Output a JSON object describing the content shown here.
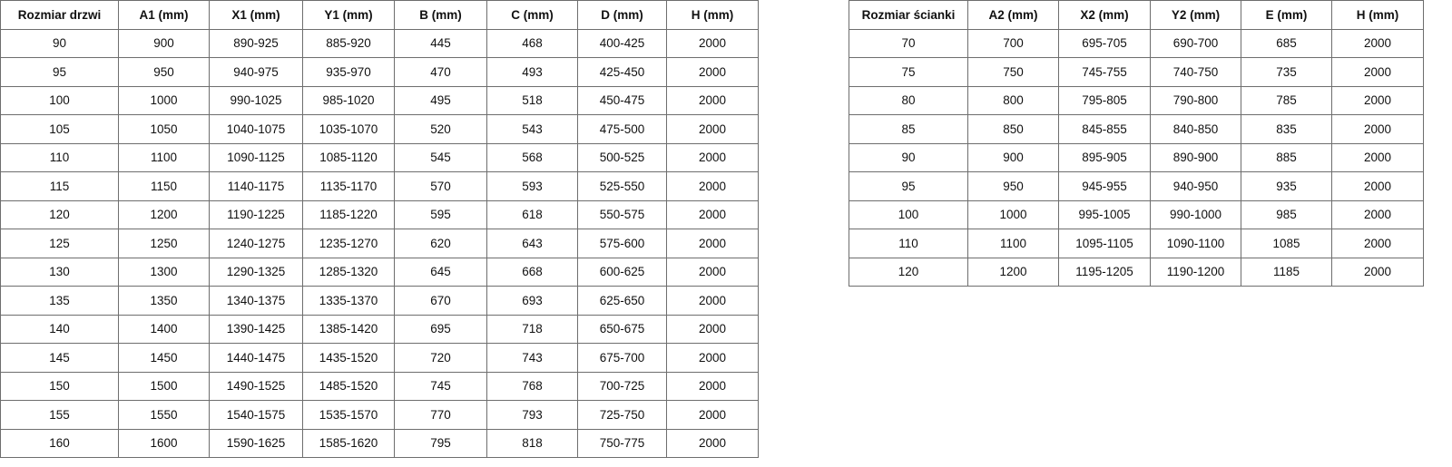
{
  "doors_table": {
    "headers": [
      "Rozmiar drzwi",
      "A1 (mm)",
      "X1 (mm)",
      "Y1 (mm)",
      "B (mm)",
      "C (mm)",
      "D (mm)",
      "H (mm)"
    ],
    "rows": [
      [
        "90",
        "900",
        "890-925",
        "885-920",
        "445",
        "468",
        "400-425",
        "2000"
      ],
      [
        "95",
        "950",
        "940-975",
        "935-970",
        "470",
        "493",
        "425-450",
        "2000"
      ],
      [
        "100",
        "1000",
        "990-1025",
        "985-1020",
        "495",
        "518",
        "450-475",
        "2000"
      ],
      [
        "105",
        "1050",
        "1040-1075",
        "1035-1070",
        "520",
        "543",
        "475-500",
        "2000"
      ],
      [
        "110",
        "1100",
        "1090-1125",
        "1085-1120",
        "545",
        "568",
        "500-525",
        "2000"
      ],
      [
        "115",
        "1150",
        "1140-1175",
        "1135-1170",
        "570",
        "593",
        "525-550",
        "2000"
      ],
      [
        "120",
        "1200",
        "1190-1225",
        "1185-1220",
        "595",
        "618",
        "550-575",
        "2000"
      ],
      [
        "125",
        "1250",
        "1240-1275",
        "1235-1270",
        "620",
        "643",
        "575-600",
        "2000"
      ],
      [
        "130",
        "1300",
        "1290-1325",
        "1285-1320",
        "645",
        "668",
        "600-625",
        "2000"
      ],
      [
        "135",
        "1350",
        "1340-1375",
        "1335-1370",
        "670",
        "693",
        "625-650",
        "2000"
      ],
      [
        "140",
        "1400",
        "1390-1425",
        "1385-1420",
        "695",
        "718",
        "650-675",
        "2000"
      ],
      [
        "145",
        "1450",
        "1440-1475",
        "1435-1520",
        "720",
        "743",
        "675-700",
        "2000"
      ],
      [
        "150",
        "1500",
        "1490-1525",
        "1485-1520",
        "745",
        "768",
        "700-725",
        "2000"
      ],
      [
        "155",
        "1550",
        "1540-1575",
        "1535-1570",
        "770",
        "793",
        "725-750",
        "2000"
      ],
      [
        "160",
        "1600",
        "1590-1625",
        "1585-1620",
        "795",
        "818",
        "750-775",
        "2000"
      ]
    ]
  },
  "walls_table": {
    "headers": [
      "Rozmiar ścianki",
      "A2 (mm)",
      "X2 (mm)",
      "Y2 (mm)",
      "E (mm)",
      "H (mm)"
    ],
    "rows": [
      [
        "70",
        "700",
        "695-705",
        "690-700",
        "685",
        "2000"
      ],
      [
        "75",
        "750",
        "745-755",
        "740-750",
        "735",
        "2000"
      ],
      [
        "80",
        "800",
        "795-805",
        "790-800",
        "785",
        "2000"
      ],
      [
        "85",
        "850",
        "845-855",
        "840-850",
        "835",
        "2000"
      ],
      [
        "90",
        "900",
        "895-905",
        "890-900",
        "885",
        "2000"
      ],
      [
        "95",
        "950",
        "945-955",
        "940-950",
        "935",
        "2000"
      ],
      [
        "100",
        "1000",
        "995-1005",
        "990-1000",
        "985",
        "2000"
      ],
      [
        "110",
        "1100",
        "1095-1105",
        "1090-1100",
        "1085",
        "2000"
      ],
      [
        "120",
        "1200",
        "1195-1205",
        "1190-1200",
        "1185",
        "2000"
      ]
    ]
  }
}
